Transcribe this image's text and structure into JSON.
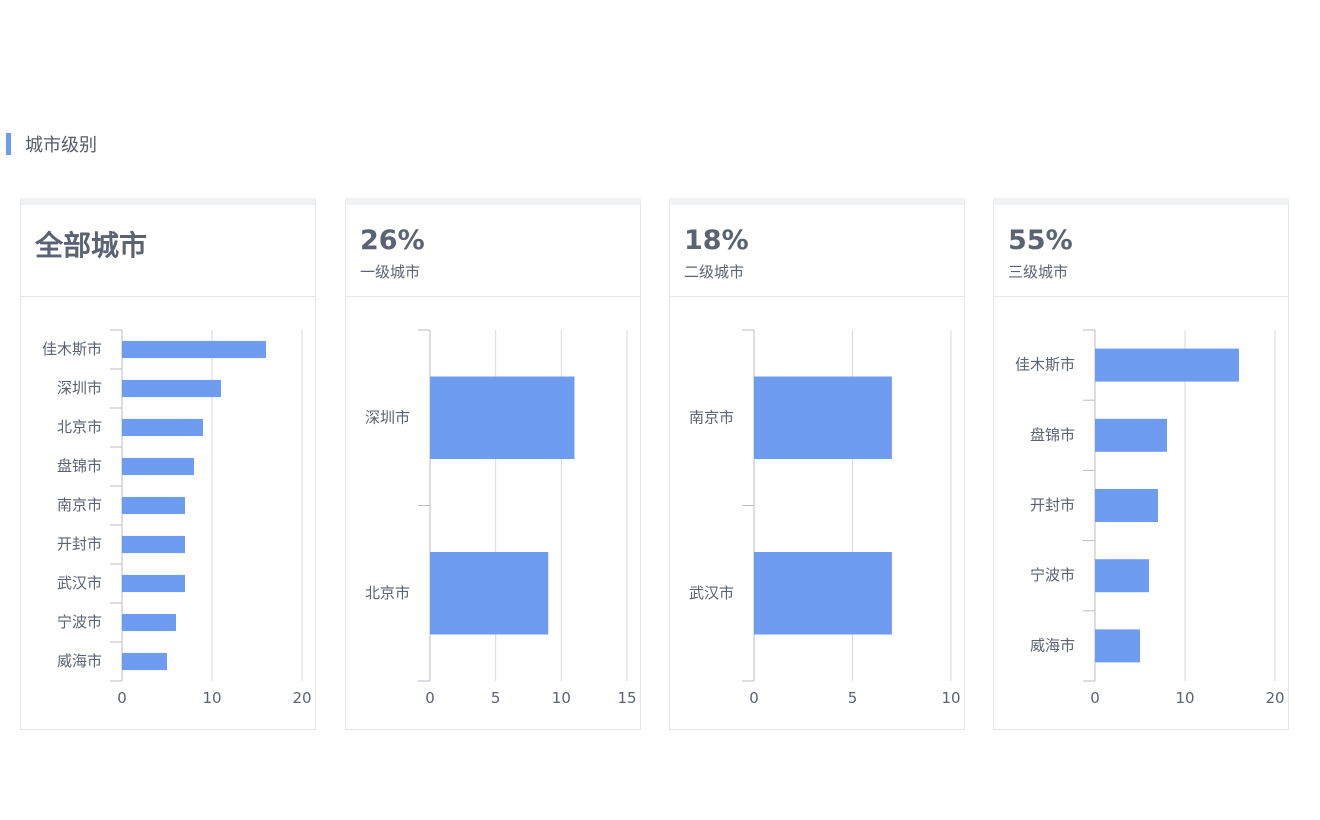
{
  "section": {
    "title": "城市级别"
  },
  "colors": {
    "bar": "#6e9cf0",
    "accent": "#6e9cf0",
    "grid": "#d6d9de"
  },
  "cards": [
    {
      "title": "全部城市",
      "pct": "",
      "subtitle": ""
    },
    {
      "title": "",
      "pct": "26%",
      "subtitle": "一级城市"
    },
    {
      "title": "",
      "pct": "18%",
      "subtitle": "二级城市"
    },
    {
      "title": "",
      "pct": "55%",
      "subtitle": "三级城市"
    }
  ],
  "chart_data": [
    {
      "type": "bar",
      "orientation": "horizontal",
      "categories": [
        "佳木斯市",
        "深圳市",
        "北京市",
        "盘锦市",
        "南京市",
        "开封市",
        "武汉市",
        "宁波市",
        "威海市"
      ],
      "values": [
        16,
        11,
        9,
        8,
        7,
        7,
        7,
        6,
        5
      ],
      "xlim": [
        0,
        20
      ],
      "xticks": [
        0,
        10,
        20
      ],
      "grid": true
    },
    {
      "type": "bar",
      "orientation": "horizontal",
      "categories": [
        "深圳市",
        "北京市"
      ],
      "values": [
        11,
        9
      ],
      "xlim": [
        0,
        15
      ],
      "xticks": [
        0,
        5,
        10,
        15
      ],
      "grid": true
    },
    {
      "type": "bar",
      "orientation": "horizontal",
      "categories": [
        "南京市",
        "武汉市"
      ],
      "values": [
        7,
        7
      ],
      "xlim": [
        0,
        10
      ],
      "xticks": [
        0,
        5,
        10
      ],
      "grid": true
    },
    {
      "type": "bar",
      "orientation": "horizontal",
      "categories": [
        "佳木斯市",
        "盘锦市",
        "开封市",
        "宁波市",
        "威海市"
      ],
      "values": [
        16,
        8,
        7,
        6,
        5
      ],
      "xlim": [
        0,
        20
      ],
      "xticks": [
        0,
        10,
        20
      ],
      "grid": true
    }
  ]
}
